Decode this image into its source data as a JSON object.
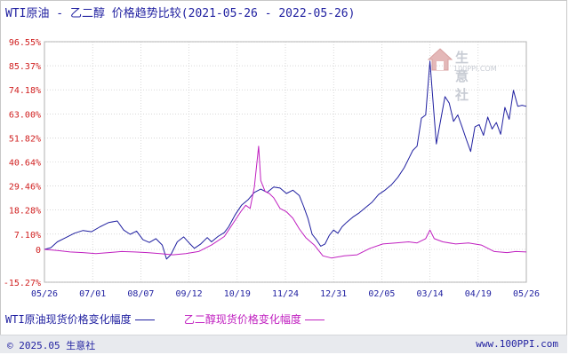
{
  "title": "WTI原油 - 乙二醇 价格趋势比较(2021-05-26 - 2022-05-26)",
  "legend": {
    "series1": "WTI原油现货价格变化幅度",
    "series2": "乙二醇现货价格变化幅度"
  },
  "footer": {
    "copyright": "© 2025.05 生意社",
    "site": "www.100PPI.com"
  },
  "watermark": {
    "name": "生意社",
    "url": "100PPI.COM"
  },
  "colors": {
    "wti": "#1f1fa0",
    "glycol": "#c020c0",
    "axis_label": "#d02020",
    "grid": "#c0c0c0"
  },
  "chart_data": {
    "type": "line",
    "title": "WTI原油 - 乙二醇 价格趋势比较(2021-05-26 - 2022-05-26)",
    "yunit": "%",
    "yticks": [
      96.55,
      85.37,
      74.18,
      63.0,
      51.82,
      40.64,
      29.46,
      18.28,
      7.1,
      0,
      -15.27
    ],
    "ytick_labels": [
      "96.55%",
      "85.37%",
      "74.18%",
      "63.00%",
      "51.82%",
      "40.64%",
      "29.46%",
      "18.28%",
      "7.10%",
      "0",
      "-15.27%"
    ],
    "ylim": [
      -15.27,
      96.55
    ],
    "xticks": [
      "05/26",
      "07/01",
      "08/07",
      "09/12",
      "10/19",
      "11/24",
      "12/31",
      "02/05",
      "03/14",
      "04/19",
      "05/26"
    ],
    "grid": true,
    "series": [
      {
        "name": "WTI原油现货价格变化幅度",
        "color": "#1f1fa0",
        "points": [
          [
            0,
            0
          ],
          [
            3,
            0.8
          ],
          [
            6,
            3.5
          ],
          [
            10,
            5.5
          ],
          [
            14,
            7.5
          ],
          [
            18,
            8.8
          ],
          [
            22,
            8.2
          ],
          [
            26,
            10.5
          ],
          [
            30,
            12.5
          ],
          [
            34,
            13.2
          ],
          [
            37,
            9.0
          ],
          [
            40,
            7.0
          ],
          [
            43,
            8.5
          ],
          [
            46,
            4.5
          ],
          [
            49,
            3.2
          ],
          [
            52,
            5.0
          ],
          [
            55,
            2.0
          ],
          [
            57,
            -4.5
          ],
          [
            59,
            -2.5
          ],
          [
            62,
            3.5
          ],
          [
            65,
            5.8
          ],
          [
            68,
            2.5
          ],
          [
            70,
            0.5
          ],
          [
            73,
            2.5
          ],
          [
            76,
            5.5
          ],
          [
            78,
            3.5
          ],
          [
            81,
            6.0
          ],
          [
            84,
            7.8
          ],
          [
            86,
            10.5
          ],
          [
            89,
            16.0
          ],
          [
            92,
            20.5
          ],
          [
            95,
            23.0
          ],
          [
            98,
            26.5
          ],
          [
            101,
            28.0
          ],
          [
            104,
            26.5
          ],
          [
            107,
            29.0
          ],
          [
            110,
            28.5
          ],
          [
            113,
            26.0
          ],
          [
            116,
            27.5
          ],
          [
            119,
            25.0
          ],
          [
            121,
            20.0
          ],
          [
            123,
            14.5
          ],
          [
            125,
            7.0
          ],
          [
            127,
            4.5
          ],
          [
            129,
            1.5
          ],
          [
            131,
            2.5
          ],
          [
            133,
            6.5
          ],
          [
            135,
            9.0
          ],
          [
            137,
            7.5
          ],
          [
            139,
            10.5
          ],
          [
            141,
            12.5
          ],
          [
            144,
            15.0
          ],
          [
            147,
            17.0
          ],
          [
            150,
            19.5
          ],
          [
            153,
            22.0
          ],
          [
            156,
            25.5
          ],
          [
            159,
            27.5
          ],
          [
            162,
            30.0
          ],
          [
            165,
            33.5
          ],
          [
            168,
            38.0
          ],
          [
            170,
            42.0
          ],
          [
            172,
            46.0
          ],
          [
            174,
            48.0
          ],
          [
            176,
            61.0
          ],
          [
            178,
            62.5
          ],
          [
            180,
            87.5
          ],
          [
            182,
            61.5
          ],
          [
            183,
            49.0
          ],
          [
            185,
            60.0
          ],
          [
            187,
            71.0
          ],
          [
            189,
            68.0
          ],
          [
            191,
            59.5
          ],
          [
            193,
            62.5
          ],
          [
            195,
            57.0
          ],
          [
            197,
            51.0
          ],
          [
            199,
            45.5
          ],
          [
            201,
            57.0
          ],
          [
            203,
            58.0
          ],
          [
            205,
            53.0
          ],
          [
            207,
            61.5
          ],
          [
            209,
            56.0
          ],
          [
            211,
            59.0
          ],
          [
            213,
            53.5
          ],
          [
            215,
            66.0
          ],
          [
            217,
            60.5
          ],
          [
            219,
            74.0
          ],
          [
            221,
            66.5
          ],
          [
            223,
            67.0
          ],
          [
            225,
            66.5
          ]
        ]
      },
      {
        "name": "乙二醇现货价格变化幅度",
        "color": "#c020c0",
        "points": [
          [
            0,
            0
          ],
          [
            6,
            -0.5
          ],
          [
            12,
            -1.2
          ],
          [
            18,
            -1.5
          ],
          [
            24,
            -2.0
          ],
          [
            30,
            -1.5
          ],
          [
            36,
            -1.0
          ],
          [
            42,
            -1.2
          ],
          [
            48,
            -1.5
          ],
          [
            54,
            -2.0
          ],
          [
            60,
            -2.5
          ],
          [
            66,
            -2.0
          ],
          [
            72,
            -1.0
          ],
          [
            78,
            2.0
          ],
          [
            84,
            6.0
          ],
          [
            88,
            12.0
          ],
          [
            92,
            18.0
          ],
          [
            94,
            20.5
          ],
          [
            96,
            19.0
          ],
          [
            98,
            29.0
          ],
          [
            100,
            48.0
          ],
          [
            101,
            32.0
          ],
          [
            103,
            27.0
          ],
          [
            105,
            26.0
          ],
          [
            107,
            24.0
          ],
          [
            110,
            19.0
          ],
          [
            113,
            17.5
          ],
          [
            116,
            14.5
          ],
          [
            119,
            9.5
          ],
          [
            122,
            5.5
          ],
          [
            126,
            2.0
          ],
          [
            130,
            -3.0
          ],
          [
            134,
            -4.0
          ],
          [
            140,
            -3.0
          ],
          [
            146,
            -2.5
          ],
          [
            152,
            0.5
          ],
          [
            158,
            2.5
          ],
          [
            164,
            3.0
          ],
          [
            170,
            3.5
          ],
          [
            174,
            3.0
          ],
          [
            178,
            5.0
          ],
          [
            180,
            9.0
          ],
          [
            182,
            5.0
          ],
          [
            186,
            3.5
          ],
          [
            192,
            2.5
          ],
          [
            198,
            3.0
          ],
          [
            204,
            2.0
          ],
          [
            210,
            -1.0
          ],
          [
            216,
            -1.5
          ],
          [
            220,
            -1.0
          ],
          [
            225,
            -1.2
          ]
        ]
      }
    ]
  }
}
